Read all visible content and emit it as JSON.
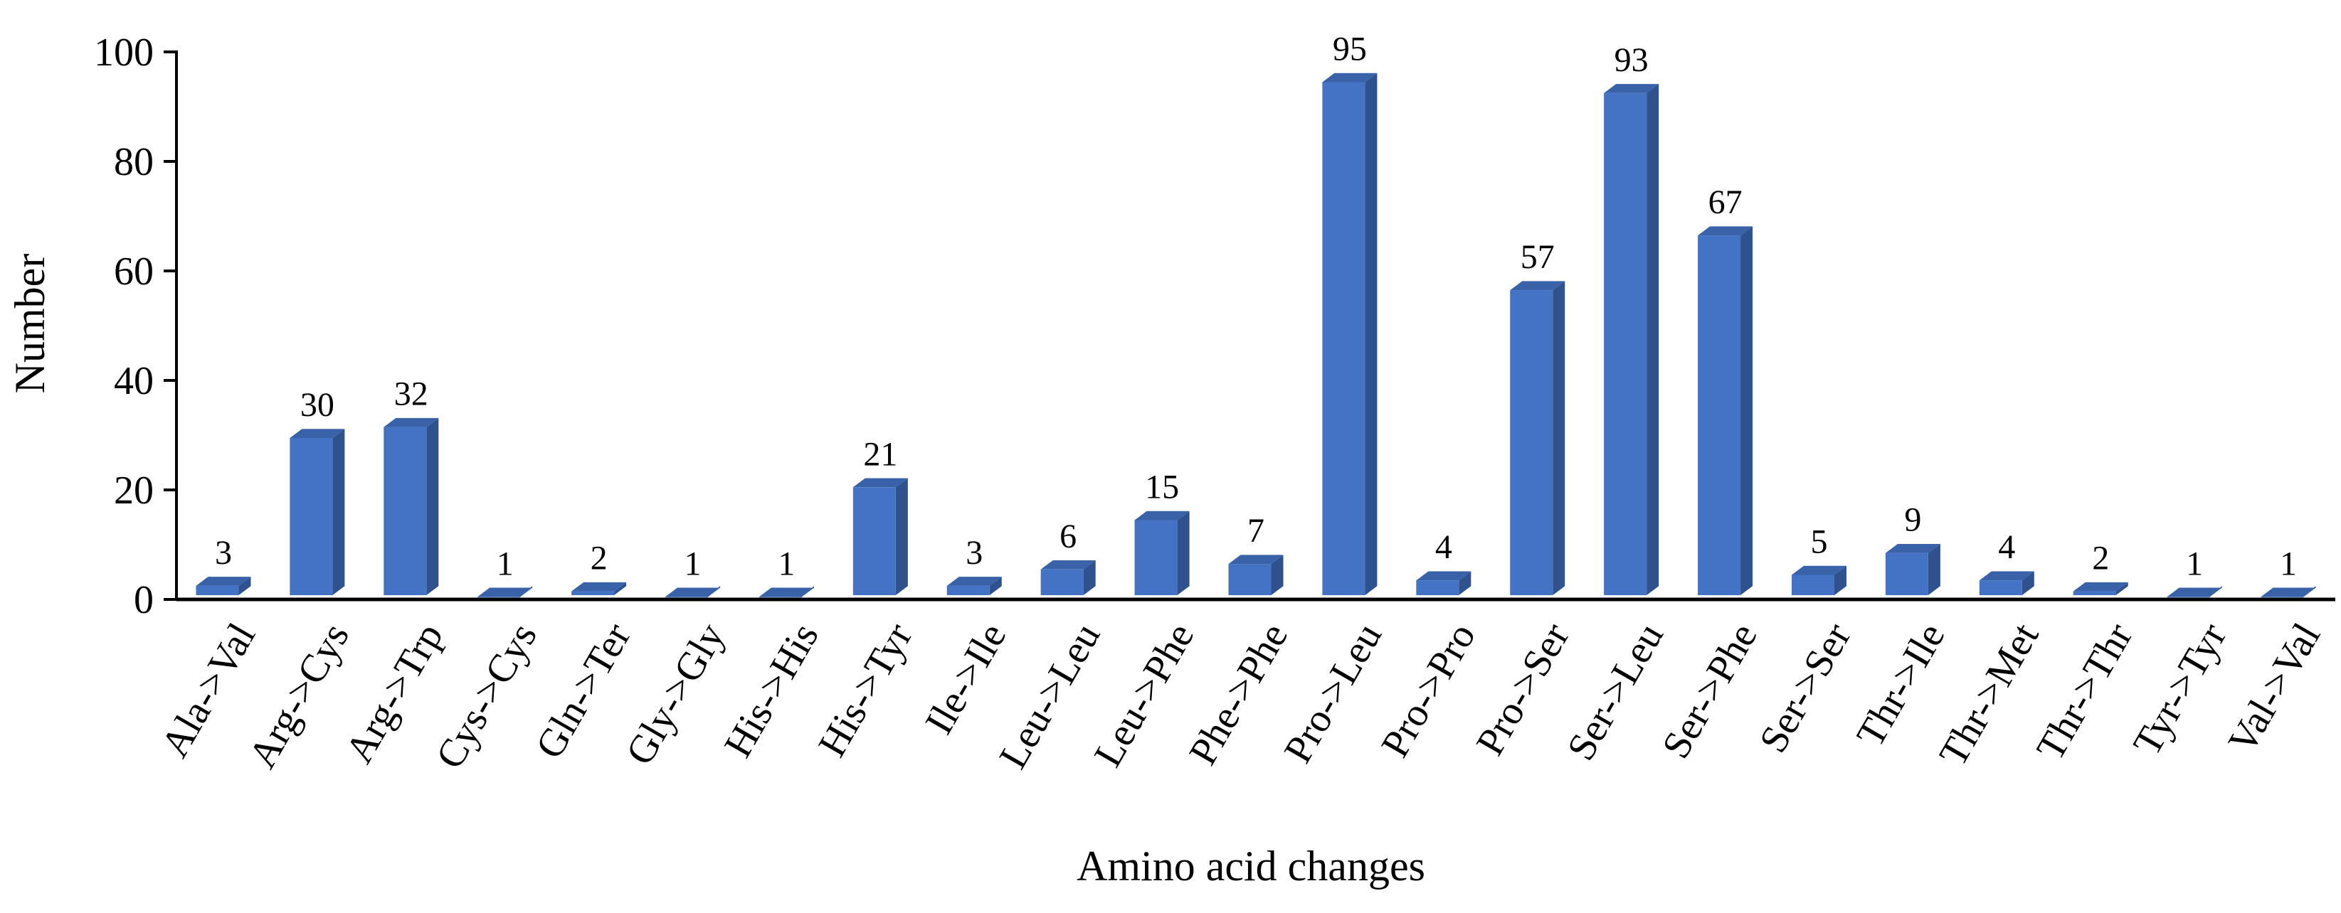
{
  "chart_data": {
    "type": "bar",
    "categories": [
      "Ala->Val",
      "Arg->Cys",
      "Arg->Trp",
      "Cys->Cys",
      "Gln->Ter",
      "Gly->Gly",
      "His->His",
      "His->Tyr",
      "Ile->Ile",
      "Leu->Leu",
      "Leu->Phe",
      "Phe->Phe",
      "Pro->Leu",
      "Pro->Pro",
      "Pro->Ser",
      "Ser->Leu",
      "Ser->Phe",
      "Ser->Ser",
      "Thr->Ile",
      "Thr->Met",
      "Thr->Thr",
      "Tyr->Tyr",
      "Val->Val"
    ],
    "values": [
      3,
      30,
      32,
      1,
      2,
      1,
      1,
      21,
      3,
      6,
      15,
      7,
      95,
      4,
      57,
      93,
      67,
      5,
      9,
      4,
      2,
      1,
      1
    ],
    "data_labels": [
      "3",
      "30",
      "32",
      "1",
      "2",
      "1",
      "1",
      "21",
      "3",
      "6",
      "15",
      "7",
      "95",
      "4",
      "57",
      "93",
      "67",
      "5",
      "9",
      "4",
      "2",
      "1",
      "1"
    ],
    "xlabel": "Amino acid changes",
    "ylabel": "Number",
    "ylim": [
      0,
      100
    ],
    "yticks": [
      0,
      20,
      40,
      60,
      80,
      100
    ],
    "grid": false,
    "legend": "none",
    "bar_style": "3d",
    "colors": {
      "bar_front": "#4472C4",
      "bar_side": "#2F528F",
      "bar_top": "#3A62A8",
      "axis": "#000000"
    }
  }
}
